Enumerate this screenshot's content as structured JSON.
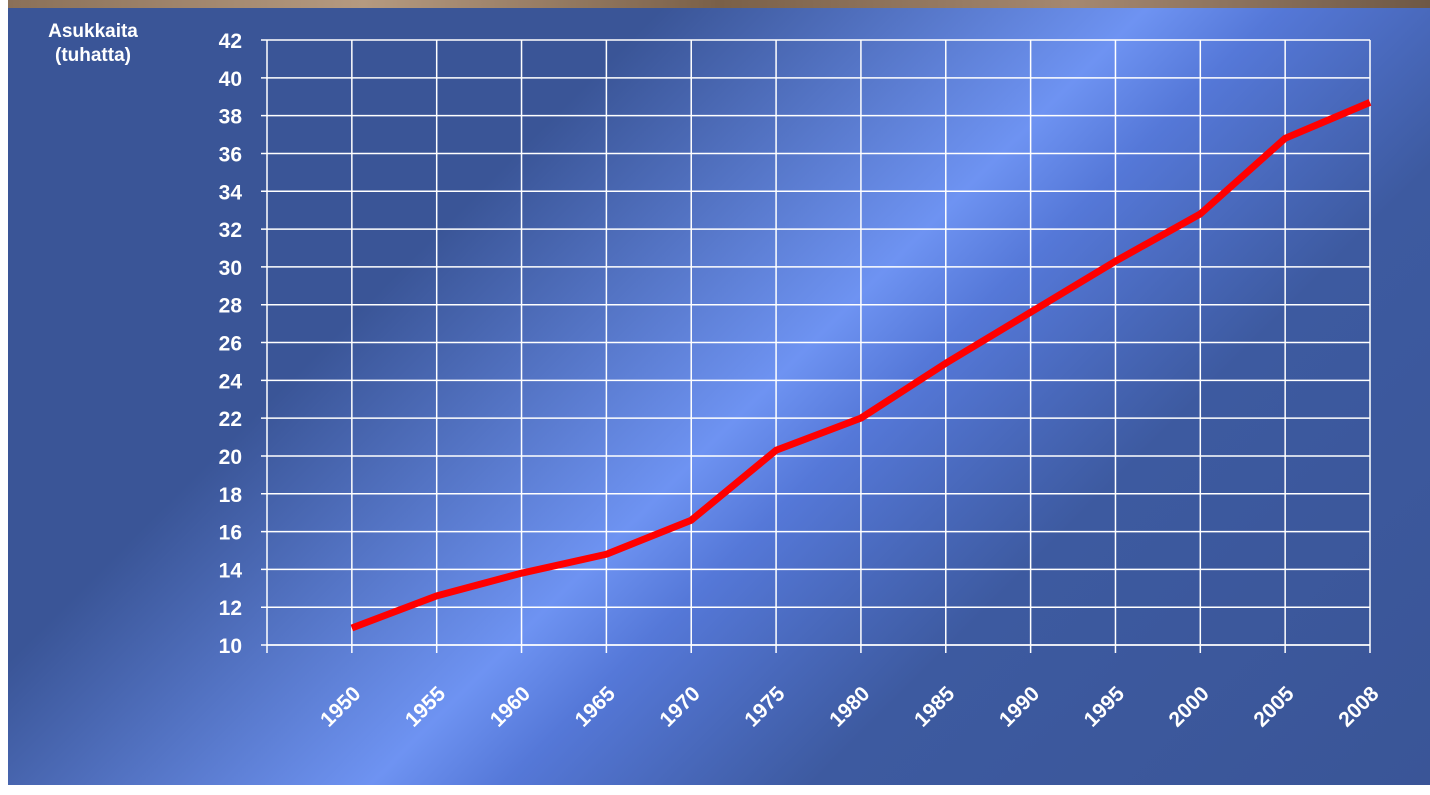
{
  "chart_data": {
    "type": "line",
    "ylabel": "Asukkaita (tuhatta)",
    "categories": [
      null,
      "1950",
      "1955",
      "1960",
      "1965",
      "1970",
      "1975",
      "1980",
      "1985",
      "1990",
      "1995",
      "2000",
      "2005",
      "2008"
    ],
    "values": [
      null,
      10.9,
      12.6,
      13.8,
      14.8,
      16.6,
      20.3,
      22.0,
      24.9,
      27.6,
      30.3,
      32.8,
      36.8,
      38.7
    ],
    "color": "#ff0000",
    "ylim": [
      10,
      42
    ],
    "yticks": [
      10,
      12,
      14,
      16,
      18,
      20,
      22,
      24,
      26,
      28,
      30,
      32,
      34,
      36,
      38,
      40,
      42
    ],
    "grid": true
  }
}
